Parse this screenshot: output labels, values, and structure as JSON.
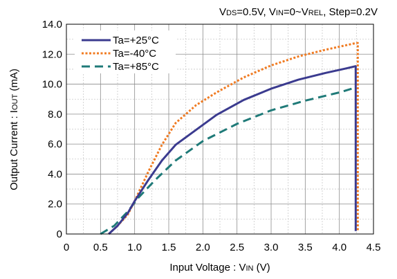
{
  "chart_data": {
    "type": "line",
    "subtitle": {
      "vds_main": "V",
      "vds_sub": "DS",
      "vds_rest": "=0.5V, ",
      "vin_main": "V",
      "vin_sub": "IN",
      "vin_rest": "=0~",
      "vrel_main": "V",
      "vrel_sub": "REL",
      "step": ", Step=0.2V"
    },
    "xlabel": {
      "prefix": "Input Voltage : ",
      "var_main": "V",
      "var_sub": "IN",
      "suffix": " (V)"
    },
    "ylabel": {
      "prefix": "Output Current : ",
      "var_main": "I",
      "var_sub": "OUT",
      "suffix": " (mA)"
    },
    "xlim": [
      0,
      4.5
    ],
    "ylim": [
      0,
      14
    ],
    "x_ticks": [
      0,
      0.5,
      1,
      1.5,
      2,
      2.5,
      3,
      3.5,
      4,
      4.5
    ],
    "x_tick_labels": [
      "0",
      "0.5",
      "1.0",
      "1.5",
      "2.0",
      "2.5",
      "3.0",
      "3.5",
      "4.0",
      "4.5"
    ],
    "y_ticks": [
      0,
      2,
      4,
      6,
      8,
      10,
      12,
      14
    ],
    "y_tick_labels": [
      "0",
      "2.0",
      "4.0",
      "6.0",
      "8.0",
      "10.0",
      "12.0",
      "14.0"
    ],
    "x_minor_grid": [
      0.25,
      0.75,
      1.25,
      1.75,
      2.25,
      2.75,
      3.25,
      3.75,
      4.25
    ],
    "y_minor_grid": [
      1,
      3,
      5,
      7,
      9,
      11,
      13
    ],
    "grid": true,
    "legend_position": "top-left",
    "series": [
      {
        "name": "Ta=+25°C",
        "color": "#3b3b8f",
        "dash": "solid",
        "x": [
          0.62,
          0.75,
          0.9,
          1.0,
          1.2,
          1.4,
          1.6,
          1.9,
          2.2,
          2.6,
          3.0,
          3.4,
          3.8,
          4.1,
          4.24,
          4.24
        ],
        "y": [
          0,
          0.55,
          1.4,
          2.2,
          3.6,
          4.9,
          5.95,
          6.95,
          7.95,
          8.95,
          9.7,
          10.3,
          10.75,
          11.05,
          11.2,
          0.2
        ]
      },
      {
        "name": "Ta=-40°C",
        "color": "#f07b22",
        "dash": "dotted",
        "x": [
          0.62,
          0.75,
          0.9,
          1.0,
          1.2,
          1.4,
          1.6,
          1.9,
          2.2,
          2.6,
          3.0,
          3.4,
          3.8,
          4.1,
          4.25,
          4.27,
          4.27
        ],
        "y": [
          0,
          0.55,
          1.3,
          2.2,
          4.15,
          5.95,
          7.4,
          8.6,
          9.45,
          10.45,
          11.25,
          11.85,
          12.3,
          12.6,
          12.75,
          12.75,
          0.2
        ]
      },
      {
        "name": "Ta=+85°C",
        "color": "#1f7a78",
        "dash": "dashed",
        "x": [
          0.5,
          0.7,
          0.9,
          1.05,
          1.3,
          1.6,
          2.0,
          2.5,
          3.0,
          3.5,
          4.0,
          4.22
        ],
        "y": [
          0,
          0.55,
          1.5,
          2.4,
          3.6,
          4.9,
          6.2,
          7.35,
          8.25,
          8.9,
          9.45,
          9.75
        ]
      }
    ]
  }
}
